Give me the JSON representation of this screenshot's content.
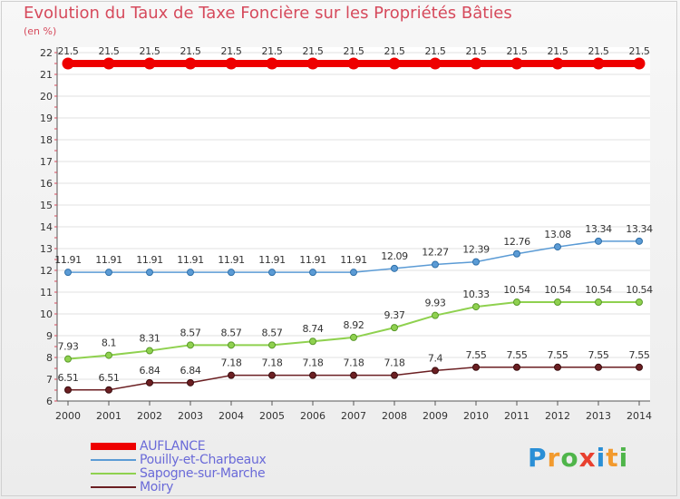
{
  "header": {
    "title": "Evolution du Taux de Taxe Foncière sur les Propriétés Bâties",
    "subtitle": "(en %)"
  },
  "logo": {
    "letters": [
      "P",
      "r",
      "o",
      "x",
      "i",
      "t",
      "i"
    ],
    "colors": [
      "#2a8fd6",
      "#f29a2e",
      "#4fb54a",
      "#e8402f",
      "#2a8fd6",
      "#f29a2e",
      "#4fb54a"
    ]
  },
  "chart_data": {
    "type": "line",
    "title": "Evolution du Taux de Taxe Foncière sur les Propriétés Bâties",
    "ylabel": "(en %)",
    "xlabel": "",
    "x": [
      "2000",
      "2001",
      "2002",
      "2003",
      "2004",
      "2005",
      "2006",
      "2007",
      "2008",
      "2009",
      "2010",
      "2011",
      "2012",
      "2013",
      "2014"
    ],
    "ylim": [
      6,
      22
    ],
    "yticks": [
      6,
      7,
      8,
      9,
      10,
      11,
      12,
      13,
      14,
      15,
      16,
      17,
      18,
      19,
      20,
      21,
      22
    ],
    "legend_position": "bottom-left",
    "series": [
      {
        "name": "AUFLANCE",
        "color": "#ee0000",
        "values": [
          21.5,
          21.5,
          21.5,
          21.5,
          21.5,
          21.5,
          21.5,
          21.5,
          21.5,
          21.5,
          21.5,
          21.5,
          21.5,
          21.5,
          21.5
        ],
        "labels": [
          "21.5",
          "21.5",
          "21.5",
          "21.5",
          "21.5",
          "21.5",
          "21.5",
          "21.5",
          "21.5",
          "21.5",
          "21.5",
          "21.5",
          "21.5",
          "21.5",
          "21.5"
        ]
      },
      {
        "name": "Pouilly-et-Charbeaux",
        "color": "#5b9bd5",
        "values": [
          11.91,
          11.91,
          11.91,
          11.91,
          11.91,
          11.91,
          11.91,
          11.91,
          12.09,
          12.27,
          12.39,
          12.76,
          13.08,
          13.34,
          13.34
        ],
        "labels": [
          "11.91",
          "11.91",
          "11.91",
          "11.91",
          "11.91",
          "11.91",
          "11.91",
          "11.91",
          "12.09",
          "12.27",
          "12.39",
          "12.76",
          "13.08",
          "13.34",
          "13.34"
        ]
      },
      {
        "name": "Sapogne-sur-Marche",
        "color": "#8fd14f",
        "values": [
          7.93,
          8.1,
          8.31,
          8.57,
          8.57,
          8.57,
          8.74,
          8.92,
          9.37,
          9.93,
          10.33,
          10.54,
          10.54,
          10.54,
          10.54
        ],
        "labels": [
          "7.93",
          "8.1",
          "8.31",
          "8.57",
          "8.57",
          "8.57",
          "8.74",
          "8.92",
          "9.37",
          "9.93",
          "10.33",
          "10.54",
          "10.54",
          "10.54",
          "10.54"
        ]
      },
      {
        "name": "Moiry",
        "color": "#6b1f22",
        "values": [
          6.51,
          6.51,
          6.84,
          6.84,
          7.18,
          7.18,
          7.18,
          7.18,
          7.18,
          7.4,
          7.55,
          7.55,
          7.55,
          7.55,
          7.55
        ],
        "labels": [
          "6.51",
          "6.51",
          "6.84",
          "6.84",
          "7.18",
          "7.18",
          "7.18",
          "7.18",
          "7.18",
          "7.4",
          "7.55",
          "7.55",
          "7.55",
          "7.55",
          "7.55"
        ]
      }
    ]
  }
}
